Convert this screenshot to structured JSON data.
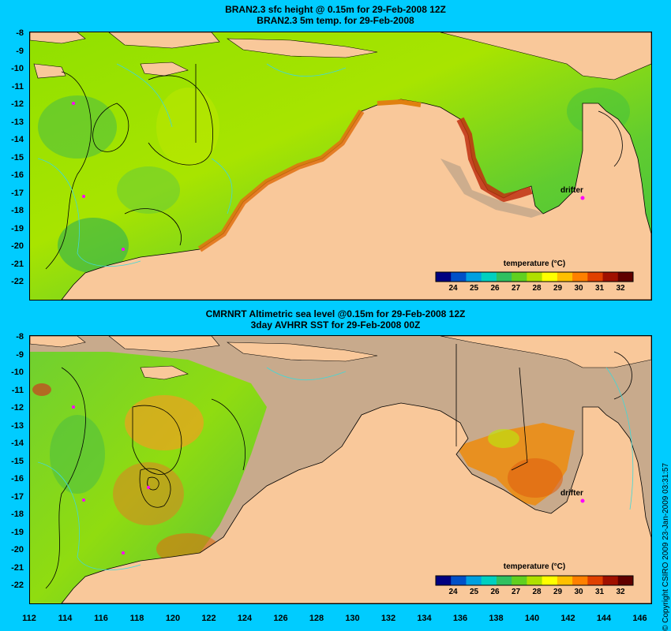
{
  "top_panel": {
    "title_line1": "BRAN2.3 sfc height @ 0.15m for 29-Feb-2008 12Z",
    "title_line2": "BRAN2.3 5m temp. for 29-Feb-2008",
    "drifter_label": "drifter",
    "colorbar_title": "temperature (°C)"
  },
  "bottom_panel": {
    "title_line1": "CMRNRT Altimetric sea level  @0.15m  for 29-Feb-2008 12Z",
    "title_line2": "3day AVHRR SST for 29-Feb-2008 00Z",
    "drifter_label": "drifter",
    "colorbar_title": "temperature (°C)"
  },
  "y_ticks": [
    "-8",
    "-9",
    "-10",
    "-11",
    "-12",
    "-13",
    "-14",
    "-15",
    "-16",
    "-17",
    "-18",
    "-19",
    "-20",
    "-21",
    "-22"
  ],
  "x_ticks": [
    "112",
    "114",
    "116",
    "118",
    "120",
    "122",
    "124",
    "126",
    "128",
    "130",
    "132",
    "134",
    "136",
    "138",
    "140",
    "142",
    "144",
    "146"
  ],
  "colorbar_ticks": [
    "24",
    "25",
    "26",
    "27",
    "28",
    "29",
    "30",
    "31",
    "32"
  ],
  "copyright": "© Copyright CSIRO 2009   23-Jan-2009 03:31:57",
  "colors": {
    "background": "#00ccff",
    "land": "#f9c89a",
    "missing": "#c8aa8c",
    "contour": "#000000",
    "bathymetry": "#40d8d8",
    "drifter": "#ff00ff"
  },
  "colorbar_colors": [
    "#000080",
    "#0050c8",
    "#00a0e0",
    "#00d0c0",
    "#30c060",
    "#60d020",
    "#b0e000",
    "#ffff00",
    "#ffc000",
    "#ff8000",
    "#e04000",
    "#a01000",
    "#600000"
  ]
}
